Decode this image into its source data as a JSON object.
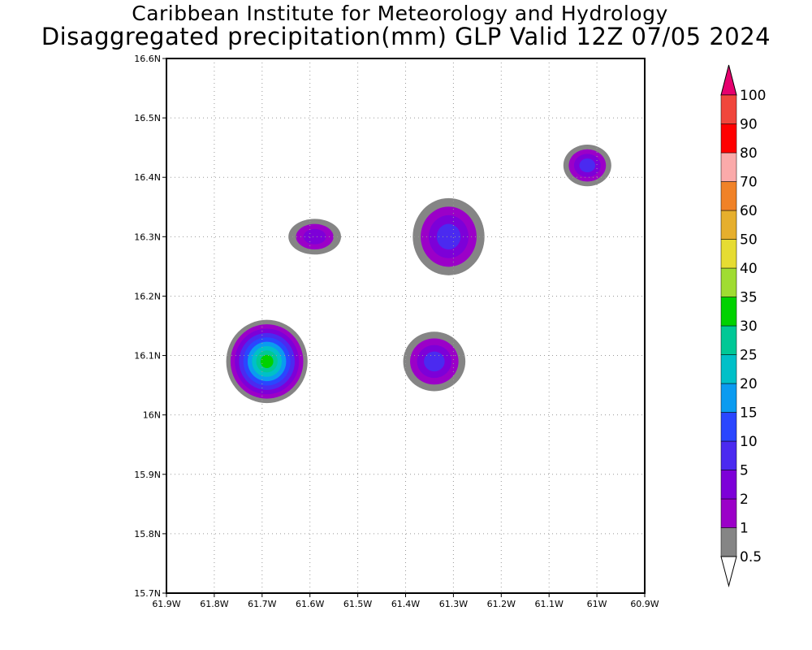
{
  "title": {
    "line1": "Caribbean Institute for Meteorology and Hydrology",
    "line2": "Disaggregated precipitation(mm) GLP Valid 12Z 07/05 2024"
  },
  "map": {
    "lon_range": [
      -61.9,
      -60.9
    ],
    "lat_range": [
      15.7,
      16.6
    ],
    "lon_ticks": [
      -61.9,
      -61.8,
      -61.7,
      -61.6,
      -61.5,
      -61.4,
      -61.3,
      -61.2,
      -61.1,
      -61.0,
      -60.9
    ],
    "lon_tick_labels": [
      "61.9W",
      "61.8W",
      "61.7W",
      "61.6W",
      "61.5W",
      "61.4W",
      "61.3W",
      "61.2W",
      "61.1W",
      "61W",
      "60.9W"
    ],
    "lat_ticks": [
      15.7,
      15.8,
      15.9,
      16.0,
      16.1,
      16.2,
      16.3,
      16.4,
      16.5,
      16.6
    ],
    "lat_tick_labels": [
      "15.7N",
      "15.8N",
      "15.9N",
      "16N",
      "16.1N",
      "16.2N",
      "16.3N",
      "16.4N",
      "16.5N",
      "16.6N"
    ],
    "grid": "dotted",
    "precip_cells": [
      {
        "lon": -61.69,
        "lat": 16.09,
        "peak_mm": 30,
        "rx_deg": 0.085,
        "ry_deg": 0.07
      },
      {
        "lon": -61.34,
        "lat": 16.09,
        "peak_mm": 5,
        "rx_deg": 0.065,
        "ry_deg": 0.05
      },
      {
        "lon": -61.31,
        "lat": 16.3,
        "peak_mm": 5,
        "rx_deg": 0.075,
        "ry_deg": 0.065
      },
      {
        "lon": -61.02,
        "lat": 16.42,
        "peak_mm": 5,
        "rx_deg": 0.05,
        "ry_deg": 0.035
      },
      {
        "lon": -61.59,
        "lat": 16.3,
        "peak_mm": 2,
        "rx_deg": 0.055,
        "ry_deg": 0.03
      }
    ]
  },
  "colorbar": {
    "levels": [
      "0.5",
      "1",
      "2",
      "5",
      "10",
      "15",
      "20",
      "25",
      "30",
      "35",
      "40",
      "50",
      "60",
      "70",
      "80",
      "90",
      "100"
    ],
    "colors": [
      "#858585",
      "#9b00c8",
      "#7d00d8",
      "#4b2af0",
      "#2a46ff",
      "#0a9bf0",
      "#00c0c8",
      "#00c896",
      "#00d200",
      "#a0dc32",
      "#e6dc32",
      "#e6af2d",
      "#f08228",
      "#faaaaa",
      "#ff0000",
      "#f0463c",
      "#e6006e"
    ],
    "below_color": "#ffffff"
  }
}
